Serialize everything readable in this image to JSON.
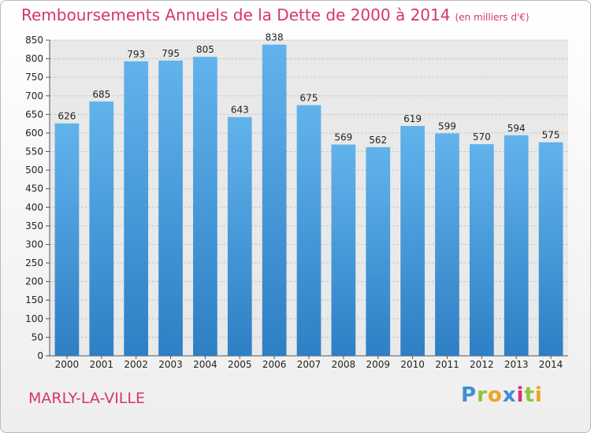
{
  "title": "Remboursements Annuels de la Dette de 2000 à 2014",
  "unit": "(en milliers d'€)",
  "city": "MARLY-LA-VILLE",
  "logo": "Proxiti",
  "colors": {
    "title": "#d63472",
    "bar_top": "#62b3ec",
    "bar_bottom": "#2e7fc4",
    "grid": "#c8c8c8"
  },
  "chart_data": {
    "type": "bar",
    "categories": [
      "2000",
      "2001",
      "2002",
      "2003",
      "2004",
      "2005",
      "2006",
      "2007",
      "2008",
      "2009",
      "2010",
      "2011",
      "2012",
      "2013",
      "2014"
    ],
    "values": [
      626,
      685,
      793,
      795,
      805,
      643,
      838,
      675,
      569,
      562,
      619,
      599,
      570,
      594,
      575
    ],
    "ylim": [
      0,
      850
    ],
    "yticks": [
      0,
      50,
      100,
      150,
      200,
      250,
      300,
      350,
      400,
      450,
      500,
      550,
      600,
      650,
      700,
      750,
      800,
      850
    ],
    "grid": true
  }
}
